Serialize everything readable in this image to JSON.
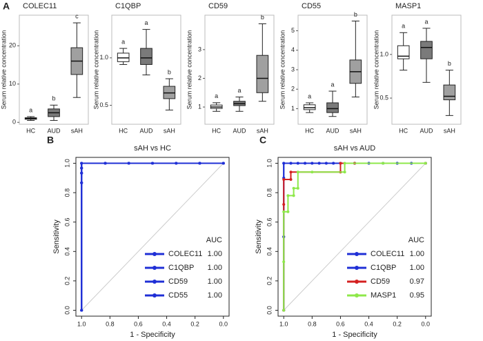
{
  "panel_labels": [
    "A",
    "B",
    "C"
  ],
  "chart_data": [
    {
      "type": "box",
      "title": "COLEC11",
      "y_label": "Serum relative concentration",
      "categories": [
        "HC",
        "AUD",
        "sAH"
      ],
      "colors": [
        "#ffffff",
        "#7a7a7a",
        "#a0a0a0"
      ],
      "ylim": [
        -0.5,
        28
      ],
      "yticks": [
        0,
        10,
        20
      ],
      "letters": [
        "a",
        "b",
        "c"
      ],
      "boxes": [
        {
          "min": 0.5,
          "q1": 0.8,
          "median": 1,
          "q3": 1.2,
          "max": 1.5
        },
        {
          "min": 0.5,
          "q1": 1.5,
          "median": 2.5,
          "q3": 3.5,
          "max": 4.5
        },
        {
          "min": 6.5,
          "q1": 12.5,
          "median": 16,
          "q3": 19.5,
          "max": 26
        }
      ]
    },
    {
      "type": "box",
      "title": "C1QBP",
      "y_label": "Serum relative concentration",
      "categories": [
        "HC",
        "AUD",
        "sAH"
      ],
      "colors": [
        "#ffffff",
        "#7a7a7a",
        "#a0a0a0"
      ],
      "ylim": [
        0.3,
        1.45
      ],
      "yticks": [
        0.5,
        {
          "value": 1,
          "label": "1.0"
        }
      ],
      "letters": [
        "a",
        "a",
        "b"
      ],
      "boxes": [
        {
          "min": 0.93,
          "q1": 0.96,
          "median": 1.0,
          "q3": 1.05,
          "max": 1.1
        },
        {
          "min": 0.82,
          "q1": 0.93,
          "median": 1.0,
          "q3": 1.1,
          "max": 1.3
        },
        {
          "min": 0.45,
          "q1": 0.57,
          "median": 0.63,
          "q3": 0.7,
          "max": 0.78
        }
      ]
    },
    {
      "type": "box",
      "title": "CD59",
      "y_label": "Serum relative concentration",
      "categories": [
        "HC",
        "AUD",
        "sAH"
      ],
      "colors": [
        "#ffffff",
        "#7a7a7a",
        "#a0a0a0"
      ],
      "ylim": [
        0.4,
        4.2
      ],
      "yticks": [
        1,
        2,
        3
      ],
      "letters": [
        "a",
        "a",
        "b"
      ],
      "boxes": [
        {
          "min": 0.85,
          "q1": 0.95,
          "median": 1.0,
          "q3": 1.07,
          "max": 1.15
        },
        {
          "min": 0.85,
          "q1": 1.05,
          "median": 1.12,
          "q3": 1.2,
          "max": 1.35
        },
        {
          "min": 1.2,
          "q1": 1.5,
          "median": 2.0,
          "q3": 2.8,
          "max": 3.9
        }
      ]
    },
    {
      "type": "box",
      "title": "CD55",
      "y_label": "Serum relative concentration",
      "categories": [
        "HC",
        "AUD",
        "sAH"
      ],
      "colors": [
        "#ffffff",
        "#7a7a7a",
        "#a0a0a0"
      ],
      "ylim": [
        0.2,
        5.8
      ],
      "yticks": [
        1,
        2,
        3,
        4,
        5
      ],
      "letters": [
        "a",
        "a",
        "b"
      ],
      "boxes": [
        {
          "min": 0.8,
          "q1": 0.95,
          "median": 1.05,
          "q3": 1.2,
          "max": 1.3
        },
        {
          "min": 0.6,
          "q1": 0.8,
          "median": 1.0,
          "q3": 1.3,
          "max": 1.9
        },
        {
          "min": 1.6,
          "q1": 2.3,
          "median": 2.9,
          "q3": 3.5,
          "max": 5.5
        }
      ]
    },
    {
      "type": "box",
      "title": "MASP1",
      "y_label": "Serum relative concentration",
      "categories": [
        "HC",
        "AUD",
        "sAH"
      ],
      "colors": [
        "#ffffff",
        "#7a7a7a",
        "#a0a0a0"
      ],
      "ylim": [
        0.2,
        1.45
      ],
      "yticks": [
        0.5,
        {
          "value": 1,
          "label": "1.0"
        }
      ],
      "letters": [
        "a",
        "a",
        "b"
      ],
      "boxes": [
        {
          "min": 0.82,
          "q1": 0.95,
          "median": 0.98,
          "q3": 1.1,
          "max": 1.25
        },
        {
          "min": 0.68,
          "q1": 0.95,
          "median": 1.08,
          "q3": 1.15,
          "max": 1.3
        },
        {
          "min": 0.3,
          "q1": 0.48,
          "median": 0.52,
          "q3": 0.65,
          "max": 0.82
        }
      ]
    },
    {
      "type": "roc",
      "title": "sAH vs HC",
      "x_label": "1 - Specificity",
      "y_label": "Sensitivity",
      "legend_title": "AUC",
      "xlim": [
        1.04,
        -0.04
      ],
      "ylim": [
        -0.04,
        1.04
      ],
      "xticks": [
        {
          "value": 1,
          "label": "1.0"
        },
        0.8,
        0.6,
        0.4,
        0.2,
        {
          "value": 0,
          "label": "0.0"
        }
      ],
      "yticks": [
        {
          "value": 0,
          "label": "0.0"
        },
        0.2,
        0.4,
        0.6,
        0.8,
        {
          "value": 1,
          "label": "1.0"
        }
      ],
      "series": [
        {
          "name": "COLEC11",
          "color": "#1f2fd6",
          "auc": 1,
          "auc_label": "1.00",
          "x": [
            1,
            1,
            1,
            1,
            1,
            0.833,
            0.667,
            0.5,
            0.333,
            0.167,
            0
          ],
          "y": [
            0,
            0.867,
            0.933,
            0.967,
            1,
            1,
            1,
            1,
            1,
            1,
            1
          ]
        },
        {
          "name": "C1QBP",
          "color": "#1f2fd6",
          "auc": 1,
          "auc_label": "1.00",
          "x": [
            1,
            1,
            1,
            1,
            1,
            0.833,
            0.667,
            0.5,
            0.333,
            0.167,
            0
          ],
          "y": [
            0,
            0.867,
            0.933,
            0.967,
            1,
            1,
            1,
            1,
            1,
            1,
            1
          ]
        },
        {
          "name": "CD59",
          "color": "#1f2fd6",
          "auc": 1,
          "auc_label": "1.00",
          "x": [
            1,
            1,
            1,
            1,
            1,
            0.833,
            0.667,
            0.5,
            0.333,
            0.167,
            0
          ],
          "y": [
            0,
            0.867,
            0.933,
            0.967,
            1,
            1,
            1,
            1,
            1,
            1,
            1
          ]
        },
        {
          "name": "CD55",
          "color": "#1f2fd6",
          "auc": 1,
          "auc_label": "1.00",
          "x": [
            1,
            1,
            1,
            1,
            1,
            0.833,
            0.667,
            0.5,
            0.333,
            0.167,
            0
          ],
          "y": [
            0,
            0.867,
            0.933,
            0.967,
            1,
            1,
            1,
            1,
            1,
            1,
            1
          ]
        }
      ]
    },
    {
      "type": "roc",
      "title": "sAH vs AUD",
      "x_label": "1 - Specificity",
      "y_label": "Sensitivity",
      "legend_title": "AUC",
      "xlim": [
        1.04,
        -0.04
      ],
      "ylim": [
        -0.04,
        1.04
      ],
      "xticks": [
        {
          "value": 1,
          "label": "1.0"
        },
        0.8,
        0.6,
        0.4,
        0.2,
        {
          "value": 0,
          "label": "0.0"
        }
      ],
      "yticks": [
        {
          "value": 0,
          "label": "0.0"
        },
        0.2,
        0.4,
        0.6,
        0.8,
        {
          "value": 1,
          "label": "1.0"
        }
      ],
      "series": [
        {
          "name": "COLEC11",
          "color": "#1f2fd6",
          "auc": 1,
          "auc_label": "1.00",
          "x": [
            1,
            1,
            1,
            1,
            0.95,
            0.9,
            0.85,
            0.8,
            0.75,
            0.7,
            0.65,
            0.6,
            0.5,
            0.4,
            0.3,
            0.2,
            0.1,
            0
          ],
          "y": [
            0,
            0.5,
            0.9,
            1,
            1,
            1,
            1,
            1,
            1,
            1,
            1,
            1,
            1,
            1,
            1,
            1,
            1,
            1
          ]
        },
        {
          "name": "C1QBP",
          "color": "#1f2fd6",
          "auc": 1,
          "auc_label": "1.00",
          "x": [
            1,
            1,
            1,
            1,
            0.95,
            0.9,
            0.85,
            0.8,
            0.75,
            0.7,
            0.65,
            0.6,
            0.5,
            0.4,
            0.3,
            0.2,
            0.1,
            0
          ],
          "y": [
            0,
            0.5,
            0.9,
            1,
            1,
            1,
            1,
            1,
            1,
            1,
            1,
            1,
            1,
            1,
            1,
            1,
            1,
            1
          ]
        },
        {
          "name": "CD59",
          "color": "#d42020",
          "auc": 0.97,
          "auc_label": "0.97",
          "x": [
            1,
            1,
            1,
            0.95,
            0.95,
            0.6,
            0.6,
            0.5,
            0
          ],
          "y": [
            0,
            0.72,
            0.89,
            0.89,
            0.94,
            0.94,
            1,
            1,
            1
          ]
        },
        {
          "name": "MASP1",
          "color": "#8ee84a",
          "auc": 0.95,
          "auc_label": "0.95",
          "x": [
            1,
            1,
            1,
            0.97,
            0.97,
            0.93,
            0.93,
            0.9,
            0.9,
            0.8,
            0.57,
            0.57,
            0.3,
            0
          ],
          "y": [
            0,
            0.33,
            0.67,
            0.67,
            0.78,
            0.78,
            0.83,
            0.83,
            0.94,
            0.94,
            0.94,
            1,
            1,
            1
          ]
        }
      ]
    }
  ]
}
